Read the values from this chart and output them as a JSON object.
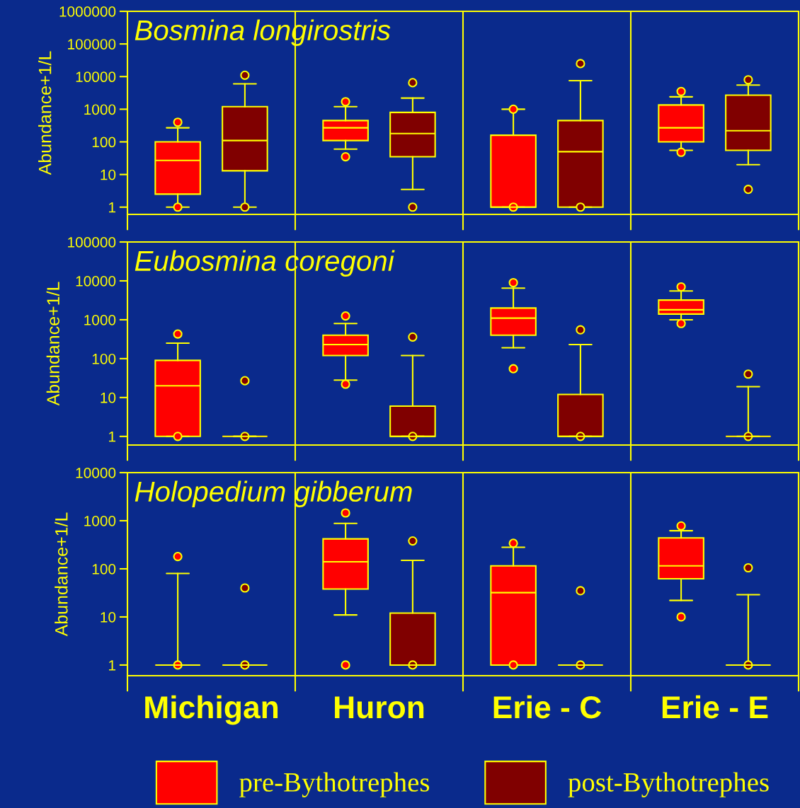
{
  "chart_data": [
    {
      "type": "box",
      "title": "Bosmina longirostris",
      "ylabel": "Abundance+1/L",
      "categories": [
        null,
        null,
        null,
        null
      ],
      "log": "y",
      "ylim": [
        0.6,
        1000000
      ],
      "yticks": [
        1,
        10,
        100,
        1000,
        10000,
        100000,
        1000000
      ],
      "grid": "x",
      "tick_labels": "y",
      "series": [
        {
          "color": "#ff0000",
          "boxes": [
            {
              "low": 1,
              "q1": 2.5,
              "median": 27,
              "q3": 100,
              "high": 270,
              "outliers": [
                1,
                400
              ]
            },
            {
              "low": 60,
              "q1": 110,
              "median": 270,
              "q3": 450,
              "high": 1200,
              "outliers": [
                35,
                1700
              ]
            },
            {
              "low": 1,
              "q1": 1,
              "median": 1,
              "q3": 160,
              "high": 1000,
              "outliers": [
                1,
                1000
              ]
            },
            {
              "low": 55,
              "q1": 100,
              "median": 270,
              "q3": 1350,
              "high": 2400,
              "outliers": [
                48,
                3500
              ]
            }
          ]
        },
        {
          "color": "#800000",
          "boxes": [
            {
              "low": 1,
              "q1": 13,
              "median": 110,
              "q3": 1200,
              "high": 6000,
              "outliers": [
                1,
                11000
              ]
            },
            {
              "low": 3.5,
              "q1": 35,
              "median": 180,
              "q3": 800,
              "high": 2200,
              "outliers": [
                1,
                6500
              ]
            },
            {
              "low": 1,
              "q1": 1,
              "median": 50,
              "q3": 450,
              "high": 7500,
              "outliers": [
                1,
                25000
              ]
            },
            {
              "low": 20,
              "q1": 55,
              "median": 220,
              "q3": 2700,
              "high": 5500,
              "outliers": [
                3.5,
                8000
              ]
            }
          ]
        }
      ]
    },
    {
      "type": "box",
      "title": "Eubosmina coregoni",
      "ylabel": "Abundance+1/L",
      "categories": [
        null,
        null,
        null,
        null
      ],
      "log": "y",
      "ylim": [
        0.6,
        100000
      ],
      "yticks": [
        1,
        10,
        100,
        1000,
        10000,
        100000
      ],
      "grid": "x",
      "tick_labels": "y",
      "series": [
        {
          "color": "#ff0000",
          "boxes": [
            {
              "low": 1,
              "q1": 1,
              "median": 20,
              "q3": 90,
              "high": 250,
              "outliers": [
                1,
                430
              ]
            },
            {
              "low": 28,
              "q1": 120,
              "median": 230,
              "q3": 400,
              "high": 800,
              "outliers": [
                22,
                1250
              ]
            },
            {
              "low": 190,
              "q1": 400,
              "median": 1100,
              "q3": 2000,
              "high": 6500,
              "outliers": [
                55,
                9000
              ]
            },
            {
              "low": 1000,
              "q1": 1400,
              "median": 1800,
              "q3": 3200,
              "high": 5500,
              "outliers": [
                800,
                7000
              ]
            }
          ]
        },
        {
          "color": "#800000",
          "boxes": [
            {
              "low": 1,
              "q1": 1,
              "median": 1,
              "q3": 1,
              "high": 1,
              "outliers": [
                1,
                27
              ]
            },
            {
              "low": 1,
              "q1": 1,
              "median": 1,
              "q3": 6,
              "high": 120,
              "outliers": [
                1,
                360
              ]
            },
            {
              "low": 1,
              "q1": 1,
              "median": 1,
              "q3": 12,
              "high": 230,
              "outliers": [
                1,
                550
              ]
            },
            {
              "low": 1,
              "q1": 1,
              "median": 1,
              "q3": 1,
              "high": 19,
              "outliers": [
                1,
                40
              ]
            }
          ]
        }
      ]
    },
    {
      "type": "box",
      "title": "Holopedium gibberum",
      "ylabel": "Abundance+1/L",
      "categories": [
        "Michigan",
        "Huron",
        "Erie - C",
        "Erie - E"
      ],
      "log": "y",
      "ylim": [
        0.6,
        10000
      ],
      "yticks": [
        1,
        10,
        100,
        1000,
        10000
      ],
      "grid": "x",
      "legend": "bottom",
      "series": [
        {
          "name": "pre-Bythotrephes",
          "color": "#ff0000",
          "boxes": [
            {
              "low": 1,
              "q1": 1,
              "median": 1,
              "q3": 1,
              "high": 80,
              "outliers": [
                1,
                180
              ]
            },
            {
              "low": 11,
              "q1": 38,
              "median": 140,
              "q3": 420,
              "high": 880,
              "outliers": [
                1,
                1450
              ]
            },
            {
              "low": 1,
              "q1": 1,
              "median": 32,
              "q3": 115,
              "high": 280,
              "outliers": [
                1,
                340
              ]
            },
            {
              "low": 22,
              "q1": 62,
              "median": 115,
              "q3": 440,
              "high": 620,
              "outliers": [
                10,
                780
              ]
            }
          ]
        },
        {
          "name": "post-Bythotrephes",
          "color": "#800000",
          "boxes": [
            {
              "low": 1,
              "q1": 1,
              "median": 1,
              "q3": 1,
              "high": 1,
              "outliers": [
                1,
                40
              ]
            },
            {
              "low": 1,
              "q1": 1,
              "median": 1,
              "q3": 12,
              "high": 150,
              "outliers": [
                1,
                380
              ]
            },
            {
              "low": 1,
              "q1": 1,
              "median": 1,
              "q3": 1,
              "high": 1,
              "outliers": [
                1,
                35
              ]
            },
            {
              "low": 1,
              "q1": 1,
              "median": 1,
              "q3": 1,
              "high": 29,
              "outliers": [
                1,
                105
              ]
            }
          ]
        }
      ]
    }
  ]
}
